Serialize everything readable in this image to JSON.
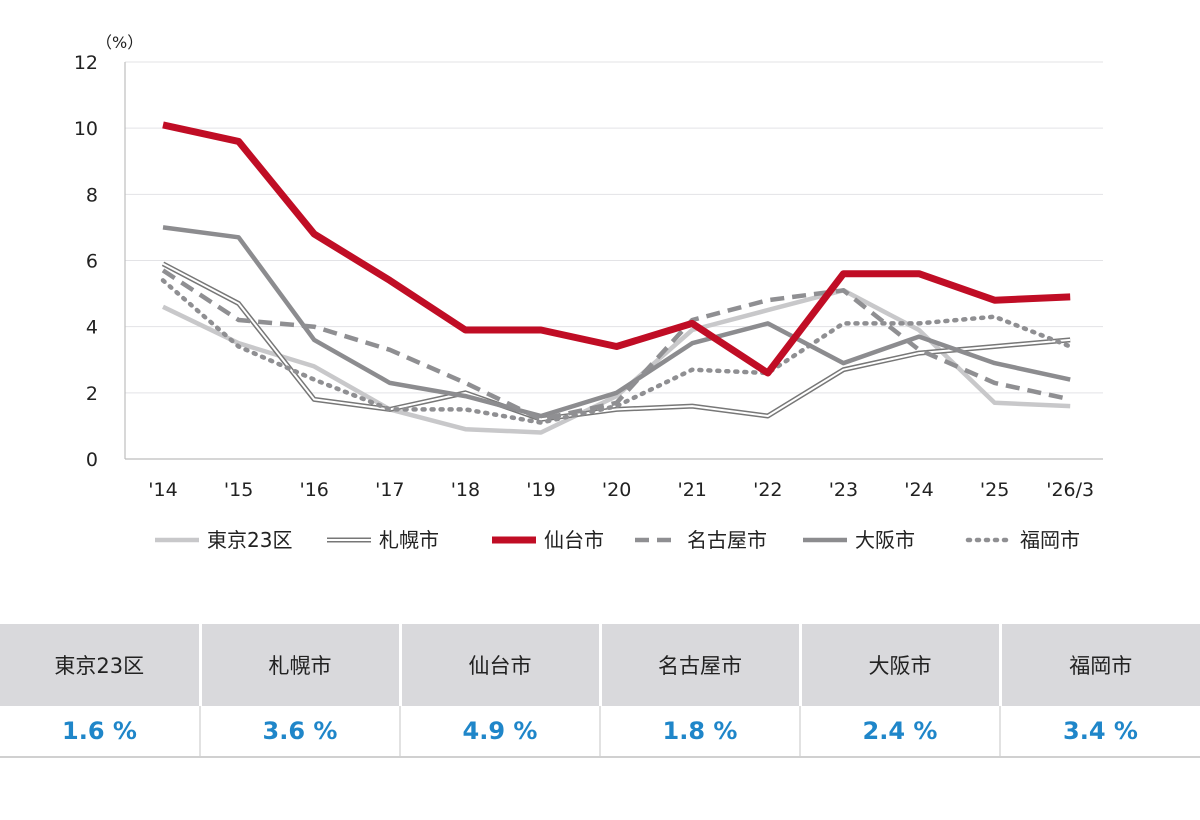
{
  "chart_data": {
    "type": "line",
    "unit_label": "（%）",
    "categories": [
      "'14",
      "'15",
      "'16",
      "'17",
      "'18",
      "'19",
      "'20",
      "'21",
      "'22",
      "'23",
      "'24",
      "'25",
      "'26/3"
    ],
    "ylim": [
      0,
      12
    ],
    "yticks": [
      0,
      2,
      4,
      6,
      8,
      10,
      12
    ],
    "grid": true,
    "legend_position": "bottom",
    "series": [
      {
        "name": "東京23区",
        "style": "solid",
        "color": "#c8c8ca",
        "values": [
          4.6,
          3.5,
          2.8,
          1.5,
          0.9,
          0.8,
          1.9,
          3.9,
          4.5,
          5.1,
          3.9,
          1.7,
          1.6
        ]
      },
      {
        "name": "札幌市",
        "style": "double",
        "color": "#777777",
        "values": [
          5.9,
          4.7,
          1.8,
          1.5,
          2.0,
          1.2,
          1.5,
          1.6,
          1.3,
          2.7,
          3.2,
          3.4,
          3.6
        ]
      },
      {
        "name": "仙台市",
        "style": "solid-thick",
        "color": "#c00d25",
        "values": [
          10.1,
          9.6,
          6.8,
          5.4,
          3.9,
          3.9,
          3.4,
          4.1,
          2.6,
          5.6,
          5.6,
          4.8,
          4.9
        ]
      },
      {
        "name": "名古屋市",
        "style": "dashed",
        "color": "#8f8f92",
        "values": [
          5.7,
          4.2,
          4.0,
          3.3,
          2.3,
          1.2,
          1.7,
          4.2,
          4.8,
          5.1,
          3.3,
          2.3,
          1.8
        ]
      },
      {
        "name": "大阪市",
        "style": "solid",
        "color": "#8c8c8f",
        "values": [
          7.0,
          6.7,
          3.6,
          2.3,
          1.9,
          1.3,
          2.0,
          3.5,
          4.1,
          2.9,
          3.7,
          2.9,
          2.4
        ]
      },
      {
        "name": "福岡市",
        "style": "dotted",
        "color": "#8f8f92",
        "values": [
          5.4,
          3.4,
          2.4,
          1.5,
          1.5,
          1.1,
          1.6,
          2.7,
          2.6,
          4.1,
          4.1,
          4.3,
          3.4
        ]
      }
    ]
  },
  "summary": {
    "headers": [
      "東京23区",
      "札幌市",
      "仙台市",
      "名古屋市",
      "大阪市",
      "福岡市"
    ],
    "values": [
      "1.6 %",
      "3.6 %",
      "4.9 %",
      "1.8 %",
      "2.4 %",
      "3.4 %"
    ]
  }
}
